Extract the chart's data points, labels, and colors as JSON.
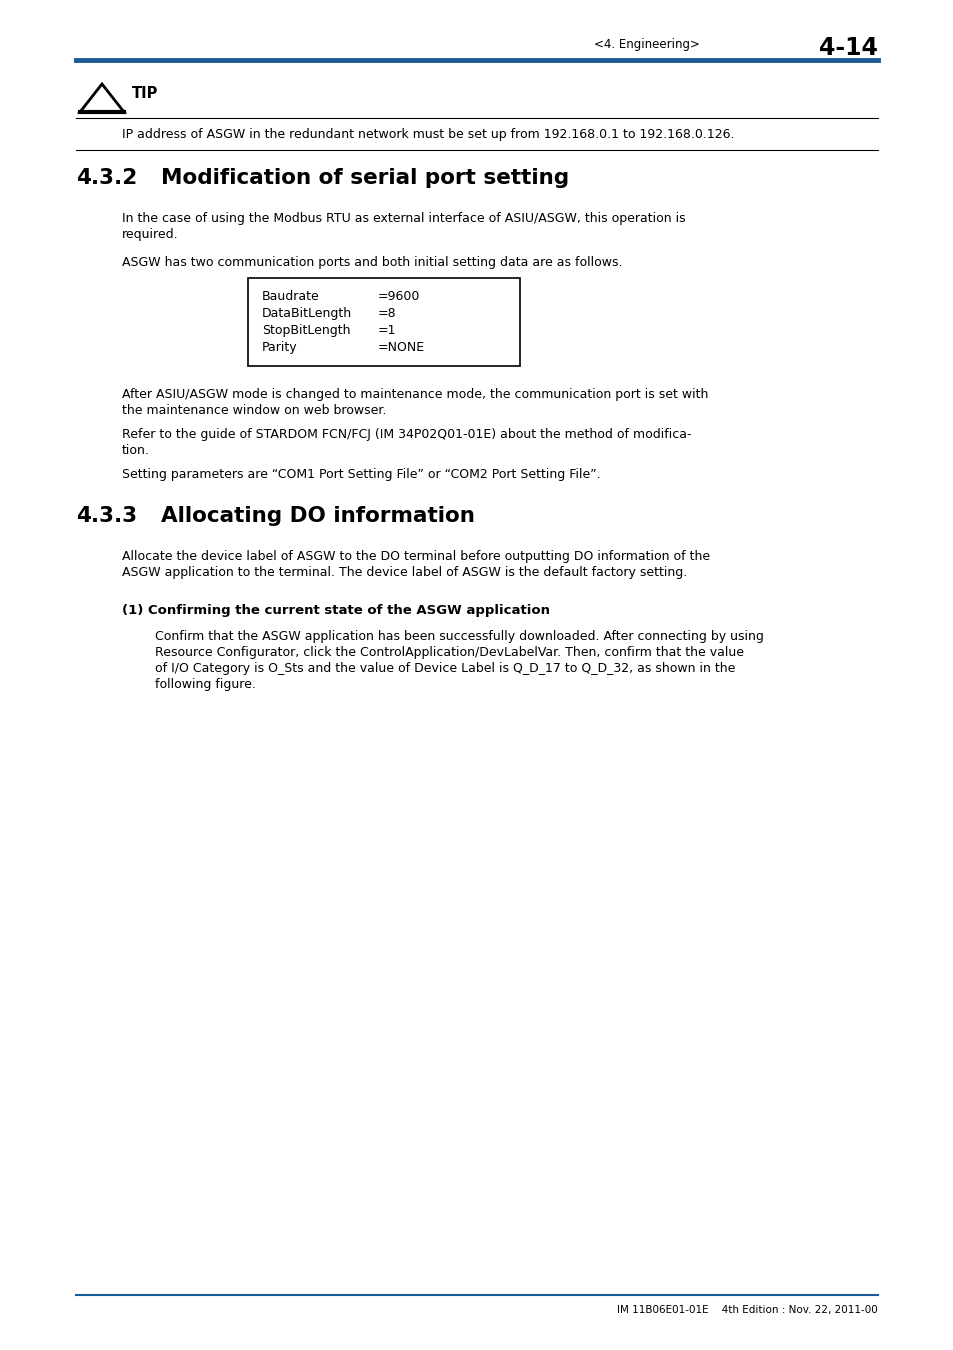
{
  "page_header_left": "<4. Engineering>",
  "page_header_right": "4-14",
  "header_line_color": "#1a5a96",
  "tip_label": "TIP",
  "tip_text": "IP address of ASGW in the redundant network must be set up from 192.168.0.1 to 192.168.0.126.",
  "section_432_num": "4.3.2",
  "section_432_title": "Modification of serial port setting",
  "section_432_p1_line1": "In the case of using the Modbus RTU as external interface of ASIU/ASGW, this operation is",
  "section_432_p1_line2": "required.",
  "section_432_p2": "ASGW has two communication ports and both initial setting data are as follows.",
  "table_rows": [
    [
      "Baudrate",
      "=9600"
    ],
    [
      "DataBitLength",
      "=8"
    ],
    [
      "StopBitLength",
      "=1"
    ],
    [
      "Parity",
      "=NONE"
    ]
  ],
  "section_432_p3_line1": "After ASIU/ASGW mode is changed to maintenance mode, the communication port is set with",
  "section_432_p3_line2": "the maintenance window on web browser.",
  "section_432_p4_line1": "Refer to the guide of STARDOM FCN/FCJ (IM 34P02Q01-01E) about the method of modifica-",
  "section_432_p4_line2": "tion.",
  "section_432_p5": "Setting parameters are “COM1 Port Setting File” or “COM2 Port Setting File”.",
  "section_433_num": "4.3.3",
  "section_433_title": "Allocating DO information",
  "section_433_p1_line1": "Allocate the device label of ASGW to the DO terminal before outputting DO information of the",
  "section_433_p1_line2": "ASGW application to the terminal. The device label of ASGW is the default factory setting.",
  "subsection_1_title": "(1) Confirming the current state of the ASGW application",
  "subsection_1_p1_line1": "Confirm that the ASGW application has been successfully downloaded. After connecting by using",
  "subsection_1_p1_line2": "Resource Configurator, click the ControlApplication/DevLabelVar. Then, confirm that the value",
  "subsection_1_p1_line3": "of I/O Category is O_Sts and the value of Device Label is Q_D_17 to Q_D_32, as shown in the",
  "subsection_1_p1_line4": "following figure.",
  "footer_text": "IM 11B06E01-01E    4th Edition : Nov. 22, 2011-00",
  "footer_line_color": "#1a5a96",
  "bg_color": "#ffffff",
  "text_color": "#000000"
}
